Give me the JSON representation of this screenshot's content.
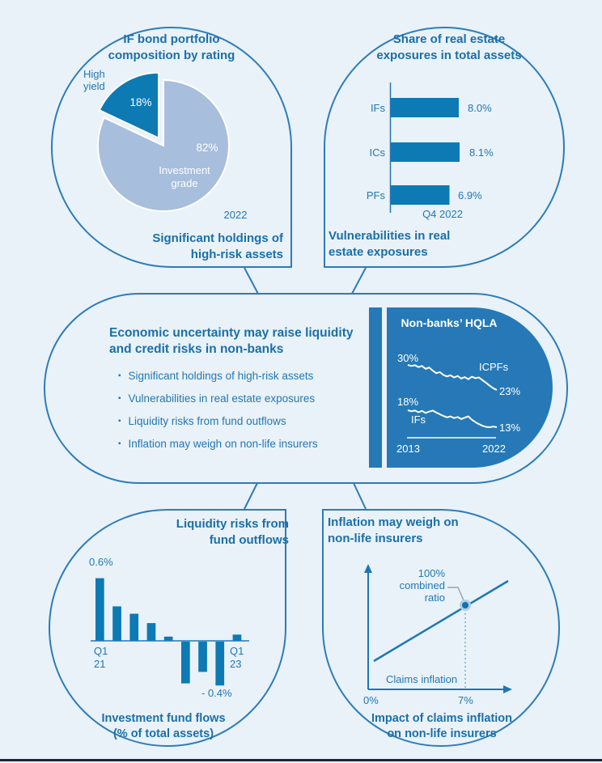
{
  "colors": {
    "background": "#e9f2f8",
    "outline_blue": "#2c7cbb",
    "accent_dark_blue": "#0d7ab4",
    "panel_blue": "#2679b6",
    "pie_light_blue": "#a7bedd",
    "text_bold_blue": "#1a6fa9",
    "text_blue": "#2377b5",
    "bottom_rule": "#18253b",
    "white": "#ffffff"
  },
  "top_left": {
    "title": [
      "IF bond portfolio",
      "composition by rating"
    ],
    "slice_label": [
      "High",
      "yield"
    ],
    "slice_value": "18%",
    "main_value": "82%",
    "main_label": [
      "Investment",
      "grade"
    ],
    "year": "2022",
    "caption": [
      "Significant holdings of",
      "high-risk assets"
    ]
  },
  "top_right": {
    "title": [
      "Share of real estate",
      "exposures in total assets"
    ],
    "categories": [
      "IFs",
      "ICs",
      "PFs"
    ],
    "values": [
      "8.0%",
      "8.1%",
      "6.9%"
    ],
    "period": "Q4 2022",
    "caption": [
      "Vulnerabilities in real",
      "estate exposures"
    ]
  },
  "center": {
    "title": [
      "Economic uncertainty may raise liquidity",
      "and credit risks in non-banks"
    ],
    "bullet_marker": "▪",
    "bullets": [
      "Significant holdings of high-risk assets",
      "Vulnerabilities in real estate exposures",
      "Liquidity risks from fund outflows",
      "Inflation may weigh on non-life insurers"
    ],
    "hqla": {
      "title": "Non-banks’ HQLA",
      "icpf_start": "30%",
      "icpf_label": "ICPFs",
      "icpf_end": "23%",
      "if_start": "18%",
      "if_label": "IFs",
      "if_end": "13%",
      "x_start": "2013",
      "x_end": "2022"
    }
  },
  "bottom_left": {
    "title": [
      "Liquidity risks from",
      "fund outflows"
    ],
    "peak_label": "0.6%",
    "x_first": [
      "Q1",
      "21"
    ],
    "x_last": [
      "Q1",
      "23"
    ],
    "trough_label": "- 0.4%",
    "caption": [
      "Investment fund flows",
      "(% of total assets)"
    ]
  },
  "bottom_right": {
    "title": [
      "Inflation may weigh on",
      "non-life insurers"
    ],
    "callout": [
      "100%",
      "combined",
      "ratio"
    ],
    "axis_label": "Claims inflation",
    "x_origin": "0%",
    "x_tick": "7%",
    "caption": [
      "Impact of claims inflation",
      "on non-life insurers"
    ]
  },
  "chart_data": [
    {
      "type": "pie",
      "title": "IF bond portfolio composition by rating",
      "labels": [
        "High yield",
        "Investment grade"
      ],
      "values": [
        18,
        82
      ],
      "unit": "%",
      "period": "2022",
      "colors": [
        "#0d7ab4",
        "#a7bedd"
      ]
    },
    {
      "type": "bar",
      "orientation": "horizontal",
      "title": "Share of real estate exposures in total assets",
      "categories": [
        "IFs",
        "ICs",
        "PFs"
      ],
      "values": [
        8.0,
        8.1,
        6.9
      ],
      "unit": "%",
      "period": "Q4 2022"
    },
    {
      "type": "line",
      "title": "Non-banks' HQLA",
      "x_range": [
        "2013",
        "2022"
      ],
      "unit": "% ",
      "series": [
        {
          "name": "ICPFs",
          "start": 30,
          "end": 23,
          "values": [
            30.0,
            29.7,
            29.9,
            29.4,
            29.7,
            28.9,
            29.3,
            28.4,
            27.7,
            28.0,
            27.2,
            26.8,
            27.1,
            26.5,
            26.9,
            26.2,
            26.6,
            26.0,
            26.7,
            26.3,
            26.5,
            25.7,
            25.0,
            24.2,
            23.5,
            23.0
          ]
        },
        {
          "name": "IFs",
          "start": 18,
          "end": 13,
          "values": [
            18.0,
            17.7,
            17.9,
            17.4,
            17.8,
            17.2,
            17.6,
            17.9,
            17.3,
            16.8,
            16.3,
            15.9,
            16.2,
            15.7,
            16.0,
            15.4,
            15.8,
            16.2,
            15.2,
            14.5,
            13.9,
            13.4,
            13.1,
            13.0,
            13.2,
            13.0
          ]
        }
      ]
    },
    {
      "type": "bar",
      "title": "Investment fund flows (% of total assets)",
      "x_labels": [
        "Q1 21",
        "Q1 23"
      ],
      "unit": "% of total assets",
      "values": [
        0.6,
        0.33,
        0.26,
        0.17,
        0.04,
        -0.4,
        -0.29,
        -0.42,
        0.06
      ],
      "peak_label": "0.6%",
      "trough_label": "-0.4%"
    },
    {
      "type": "line",
      "title": "Impact of claims inflation on non-life insurers",
      "x_axis_label": "Claims inflation",
      "x_ticks": [
        "0%",
        "7%"
      ],
      "annotation": "100% combined ratio",
      "description": "Combined ratio rises linearly with claims inflation, reaching 100% at 7%"
    }
  ]
}
